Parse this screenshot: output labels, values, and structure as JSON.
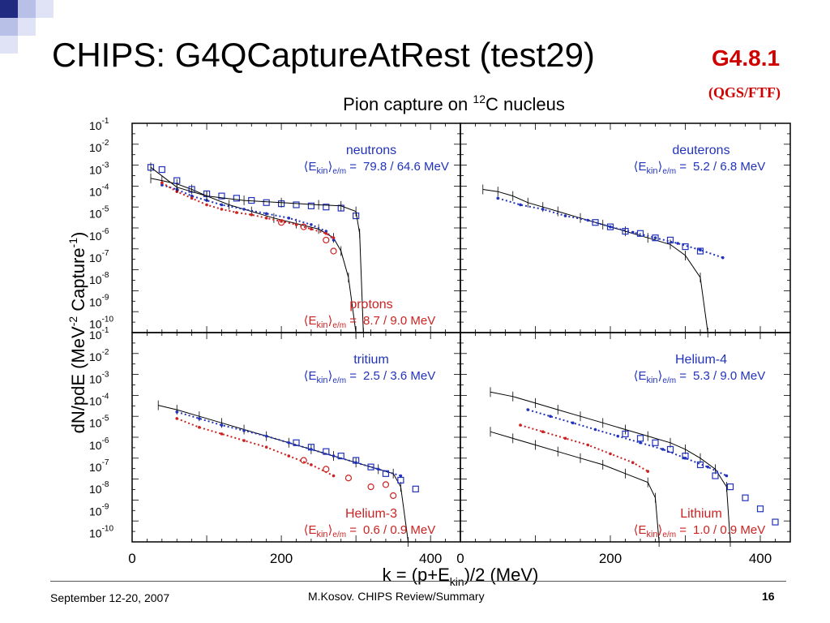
{
  "slide": {
    "title": "CHIPS: G4QCaptureAtRest (test29)",
    "version": "G4.8.1",
    "version_sub": "(QGS/FTF)",
    "footer_date": "September 12-20, 2007",
    "footer_author": "M.Kosov. CHIPS Review/Summary",
    "page_number": "16",
    "colors": {
      "decor_dark": "#1f2a80",
      "decor_light": "#b8c0e8",
      "accent_red": "#d00000"
    }
  },
  "chart_data": {
    "type": "scatter",
    "title_prefix": "Pion capture on",
    "title_sup": "12",
    "title_suffix": "C nucleus",
    "xlabel_main": "k = (p+E",
    "xlabel_sub": "kin",
    "xlabel_end": ")/2 (MeV)",
    "ylabel_main": "dN/pdE (MeV",
    "ylabel_sup1": "-2",
    "ylabel_mid": " Capture",
    "ylabel_sup2": "-1",
    "ylabel_end": ")",
    "x_ticks": [
      "0",
      "200",
      "400"
    ],
    "y_tick_base": "10",
    "y_tick_exps": [
      "-1",
      "-2",
      "-3",
      "-4",
      "-5",
      "-6",
      "-7",
      "-8",
      "-9",
      "-10"
    ],
    "xlim": [
      0,
      440
    ],
    "ylim_log10": [
      -10.5,
      -1
    ],
    "y_scale": "log",
    "series_styles": {
      "data": {
        "color": "#000000",
        "marker": "line-with-error-bars"
      },
      "chips_blue": {
        "color": "#2233bb",
        "marker": "dots"
      },
      "chips_red": {
        "color": "#cc2222",
        "marker": "dots"
      },
      "blue_squares": {
        "color": "#2233bb",
        "marker": "open-square"
      },
      "red_circles": {
        "color": "#cc2222",
        "marker": "open-circle"
      }
    },
    "panels": [
      {
        "labels": [
          {
            "name": "neutrons",
            "color": "#2233bb",
            "e_kin": "79.8 / 64.6 MeV",
            "pos": "top"
          },
          {
            "name": "protons",
            "color": "#cc2222",
            "e_kin": "8.7 / 9.0 MeV",
            "pos": "bottom"
          }
        ],
        "series": [
          {
            "style": "data",
            "points": [
              [
                25,
                -3.5
              ],
              [
                40,
                -3.6
              ],
              [
                60,
                -3.75
              ],
              [
                80,
                -4.0
              ],
              [
                100,
                -4.3
              ],
              [
                130,
                -4.7
              ],
              [
                160,
                -5.0
              ],
              [
                190,
                -5.3
              ],
              [
                220,
                -5.55
              ],
              [
                250,
                -5.8
              ],
              [
                270,
                -6.2
              ],
              [
                280,
                -6.8
              ],
              [
                290,
                -8.0
              ],
              [
                300,
                -10.5
              ]
            ]
          },
          {
            "style": "chips_blue",
            "points": [
              [
                40,
                -3.8
              ],
              [
                60,
                -4.0
              ],
              [
                80,
                -4.3
              ],
              [
                100,
                -4.5
              ],
              [
                120,
                -4.7
              ],
              [
                150,
                -4.9
              ],
              [
                180,
                -5.1
              ],
              [
                210,
                -5.3
              ],
              [
                240,
                -5.6
              ],
              [
                260,
                -5.9
              ],
              [
                270,
                -6.3
              ]
            ]
          },
          {
            "style": "chips_red",
            "points": [
              [
                40,
                -3.7
              ],
              [
                60,
                -4.1
              ],
              [
                80,
                -4.4
              ],
              [
                100,
                -4.7
              ],
              [
                120,
                -4.9
              ],
              [
                140,
                -5.05
              ],
              [
                160,
                -5.15
              ],
              [
                180,
                -5.3
              ],
              [
                200,
                -5.45
              ],
              [
                220,
                -5.6
              ],
              [
                240,
                -5.8
              ],
              [
                260,
                -6.0
              ],
              [
                270,
                -6.2
              ]
            ]
          },
          {
            "style": "blue_squares",
            "points": [
              [
                25,
                -3.0
              ],
              [
                40,
                -3.1
              ],
              [
                60,
                -3.6
              ],
              [
                80,
                -4.0
              ],
              [
                100,
                -4.2
              ],
              [
                120,
                -4.3
              ],
              [
                140,
                -4.4
              ],
              [
                160,
                -4.5
              ],
              [
                180,
                -4.6
              ],
              [
                200,
                -4.65
              ],
              [
                220,
                -4.7
              ],
              [
                240,
                -4.75
              ],
              [
                260,
                -4.8
              ],
              [
                280,
                -4.85
              ],
              [
                300,
                -5.2
              ]
            ]
          },
          {
            "style": "red_circles",
            "points": [
              [
                200,
                -5.5
              ],
              [
                230,
                -5.7
              ],
              [
                260,
                -6.3
              ],
              [
                270,
                -6.8
              ]
            ]
          },
          {
            "style": "data",
            "points": [
              [
                25,
                -3.0
              ],
              [
                60,
                -3.9
              ],
              [
                100,
                -4.3
              ],
              [
                150,
                -4.5
              ],
              [
                200,
                -4.6
              ],
              [
                250,
                -4.7
              ],
              [
                280,
                -4.75
              ],
              [
                300,
                -5.0
              ],
              [
                305,
                -6.0
              ],
              [
                310,
                -10.5
              ]
            ]
          }
        ]
      },
      {
        "labels": [
          {
            "name": "deuterons",
            "color": "#2233bb",
            "e_kin": "5.2 / 6.8 MeV",
            "pos": "top"
          }
        ],
        "series": [
          {
            "style": "data",
            "points": [
              [
                30,
                -4.0
              ],
              [
                50,
                -4.1
              ],
              [
                70,
                -4.3
              ],
              [
                90,
                -4.6
              ],
              [
                110,
                -4.8
              ],
              [
                130,
                -5.0
              ],
              [
                160,
                -5.3
              ],
              [
                190,
                -5.6
              ],
              [
                220,
                -5.9
              ],
              [
                250,
                -6.2
              ],
              [
                280,
                -6.5
              ],
              [
                300,
                -7.0
              ],
              [
                320,
                -8.0
              ],
              [
                330,
                -10.5
              ]
            ]
          },
          {
            "style": "chips_blue",
            "points": [
              [
                50,
                -4.4
              ],
              [
                80,
                -4.7
              ],
              [
                110,
                -4.9
              ],
              [
                140,
                -5.2
              ],
              [
                170,
                -5.4
              ],
              [
                200,
                -5.7
              ],
              [
                230,
                -5.95
              ],
              [
                260,
                -6.2
              ],
              [
                290,
                -6.45
              ],
              [
                320,
                -6.75
              ],
              [
                350,
                -7.1
              ]
            ]
          },
          {
            "style": "blue_squares",
            "points": [
              [
                180,
                -5.5
              ],
              [
                200,
                -5.7
              ],
              [
                220,
                -5.9
              ],
              [
                240,
                -6.0
              ],
              [
                260,
                -6.2
              ],
              [
                280,
                -6.3
              ],
              [
                300,
                -6.6
              ],
              [
                320,
                -6.8
              ]
            ]
          }
        ]
      },
      {
        "labels": [
          {
            "name": "tritium",
            "color": "#2233bb",
            "e_kin": "2.5 / 3.6 MeV",
            "pos": "top"
          },
          {
            "name": "Helium-3",
            "color": "#cc2222",
            "e_kin": "0.6 / 0.9 MeV",
            "pos": "bottom"
          }
        ],
        "series": [
          {
            "style": "data",
            "points": [
              [
                35,
                -4.3
              ],
              [
                60,
                -4.5
              ],
              [
                90,
                -4.8
              ],
              [
                120,
                -5.1
              ],
              [
                150,
                -5.4
              ],
              [
                180,
                -5.7
              ],
              [
                210,
                -6.0
              ],
              [
                240,
                -6.3
              ],
              [
                270,
                -6.6
              ],
              [
                300,
                -6.9
              ],
              [
                330,
                -7.2
              ],
              [
                350,
                -7.4
              ],
              [
                360,
                -8.0
              ],
              [
                370,
                -10.5
              ]
            ]
          },
          {
            "style": "chips_blue",
            "points": [
              [
                60,
                -4.6
              ],
              [
                90,
                -4.9
              ],
              [
                120,
                -5.2
              ],
              [
                150,
                -5.45
              ],
              [
                180,
                -5.7
              ],
              [
                210,
                -6.0
              ],
              [
                240,
                -6.3
              ],
              [
                270,
                -6.6
              ],
              [
                300,
                -6.9
              ],
              [
                330,
                -7.2
              ],
              [
                360,
                -7.5
              ]
            ]
          },
          {
            "style": "chips_red",
            "points": [
              [
                60,
                -4.9
              ],
              [
                90,
                -5.3
              ],
              [
                120,
                -5.6
              ],
              [
                150,
                -5.9
              ],
              [
                180,
                -6.2
              ],
              [
                210,
                -6.6
              ],
              [
                240,
                -7.0
              ],
              [
                270,
                -7.5
              ]
            ]
          },
          {
            "style": "blue_squares",
            "points": [
              [
                220,
                -6.0
              ],
              [
                240,
                -6.2
              ],
              [
                260,
                -6.4
              ],
              [
                280,
                -6.6
              ],
              [
                300,
                -6.8
              ],
              [
                320,
                -7.1
              ],
              [
                340,
                -7.4
              ],
              [
                360,
                -7.7
              ],
              [
                380,
                -8.1
              ]
            ]
          },
          {
            "style": "red_circles",
            "points": [
              [
                230,
                -6.8
              ],
              [
                260,
                -7.2
              ],
              [
                290,
                -7.6
              ],
              [
                320,
                -8.0
              ],
              [
                340,
                -7.9
              ],
              [
                350,
                -8.4
              ]
            ]
          }
        ]
      },
      {
        "labels": [
          {
            "name": "Helium-4",
            "color": "#2233bb",
            "e_kin": "5.3 / 9.0 MeV",
            "pos": "top"
          },
          {
            "name": "Lithium",
            "color": "#cc2222",
            "e_kin": "1.0 / 0.9 MeV",
            "pos": "bottom"
          }
        ],
        "series": [
          {
            "style": "data",
            "points": [
              [
                40,
                -3.7
              ],
              [
                70,
                -3.9
              ],
              [
                100,
                -4.2
              ],
              [
                130,
                -4.5
              ],
              [
                160,
                -4.8
              ],
              [
                190,
                -5.1
              ],
              [
                220,
                -5.4
              ],
              [
                250,
                -5.7
              ],
              [
                280,
                -6.0
              ],
              [
                300,
                -6.3
              ],
              [
                320,
                -6.7
              ],
              [
                340,
                -7.2
              ],
              [
                355,
                -8.0
              ],
              [
                360,
                -10.5
              ]
            ]
          },
          {
            "style": "chips_blue",
            "points": [
              [
                90,
                -4.5
              ],
              [
                120,
                -4.8
              ],
              [
                150,
                -5.1
              ],
              [
                180,
                -5.4
              ],
              [
                210,
                -5.7
              ],
              [
                240,
                -6.0
              ],
              [
                270,
                -6.3
              ],
              [
                300,
                -6.7
              ],
              [
                330,
                -7.1
              ],
              [
                355,
                -7.5
              ]
            ]
          },
          {
            "style": "chips_red",
            "points": [
              [
                80,
                -5.2
              ],
              [
                110,
                -5.5
              ],
              [
                140,
                -5.8
              ],
              [
                170,
                -6.1
              ],
              [
                200,
                -6.5
              ],
              [
                230,
                -6.9
              ],
              [
                250,
                -7.3
              ]
            ]
          },
          {
            "style": "blue_squares",
            "points": [
              [
                220,
                -5.6
              ],
              [
                240,
                -5.8
              ],
              [
                260,
                -6.0
              ],
              [
                280,
                -6.3
              ],
              [
                300,
                -6.6
              ],
              [
                320,
                -7.0
              ],
              [
                340,
                -7.5
              ],
              [
                360,
                -8.0
              ],
              [
                380,
                -8.5
              ],
              [
                400,
                -9.0
              ],
              [
                420,
                -9.6
              ]
            ]
          },
          {
            "style": "data",
            "points": [
              [
                40,
                -5.5
              ],
              [
                70,
                -5.8
              ],
              [
                100,
                -6.1
              ],
              [
                130,
                -6.4
              ],
              [
                160,
                -6.7
              ],
              [
                190,
                -7.0
              ],
              [
                220,
                -7.4
              ],
              [
                250,
                -7.8
              ],
              [
                260,
                -8.5
              ],
              [
                265,
                -10.5
              ]
            ]
          }
        ]
      }
    ]
  }
}
